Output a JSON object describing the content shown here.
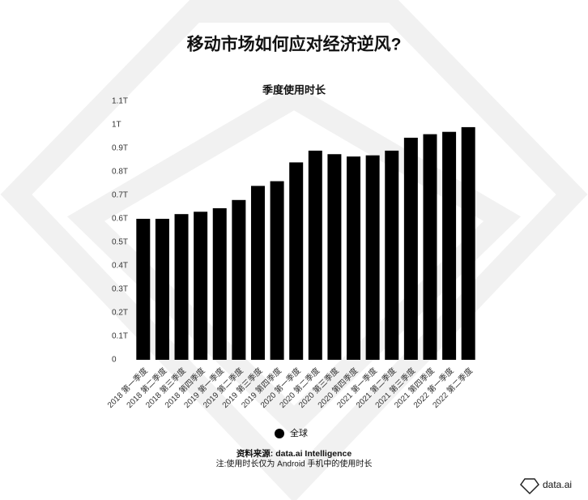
{
  "chart_data": {
    "type": "bar",
    "title": "移动市场如何应对经济逆风?",
    "subtitle": "季度使用时长",
    "categories": [
      "2018 第一季度",
      "2018 第二季度",
      "2018 第三季度",
      "2018 第四季度",
      "2019 第一季度",
      "2019 第二季度",
      "2019 第三季度",
      "2019 第四季度",
      "2020 第一季度",
      "2020 第二季度",
      "2020 第三季度",
      "2020 第四季度",
      "2021 第一季度",
      "2021 第二季度",
      "2021 第三季度",
      "2021 第四季度",
      "2022 第一季度",
      "2022 第二季度"
    ],
    "series": [
      {
        "name": "全球",
        "color": "#000000",
        "values": [
          0.6,
          0.6,
          0.62,
          0.63,
          0.645,
          0.68,
          0.74,
          0.76,
          0.84,
          0.89,
          0.875,
          0.865,
          0.87,
          0.89,
          0.945,
          0.96,
          0.97,
          0.99
        ]
      }
    ],
    "ylim": [
      0,
      1.1
    ],
    "yticks": [
      0,
      {
        "value": 0.1,
        "label": "0.1T"
      },
      {
        "value": 0.2,
        "label": "0.2T"
      },
      {
        "value": 0.3,
        "label": "0.3T"
      },
      {
        "value": 0.4,
        "label": "0.4T"
      },
      {
        "value": 0.5,
        "label": "0.5T"
      },
      {
        "value": 0.6,
        "label": "0.6T"
      },
      {
        "value": 0.7,
        "label": "0.7T"
      },
      {
        "value": 0.8,
        "label": "0.8T"
      },
      {
        "value": 0.9,
        "label": "0.9T"
      },
      {
        "value": 1,
        "label": "1T"
      },
      {
        "value": 1.1,
        "label": "1.1T"
      }
    ],
    "grid": false,
    "source": "资料来源: data.ai Intelligence",
    "note": "注:使用时长仅为 Android 手机中的使用时长",
    "brand": "data.ai"
  }
}
